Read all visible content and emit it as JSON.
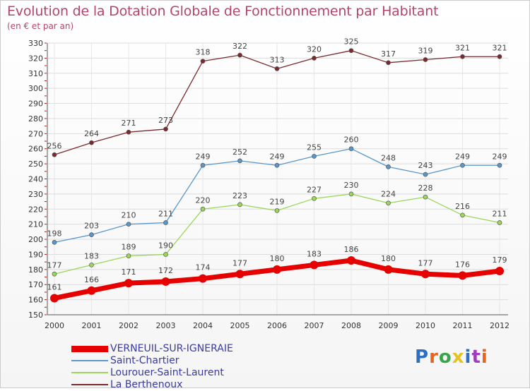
{
  "header": {
    "title": "Evolution de la Dotation Globale de Fonctionnement par Habitant",
    "subtitle": "(en € et par an)"
  },
  "brand": {
    "text": "Proxiti",
    "letter_colors": [
      "#2f6fc0",
      "#e8641e",
      "#3aa548",
      "#e5c21c",
      "#2f6fc0",
      "#9c3fb8",
      "#e8641e"
    ]
  },
  "chart_data": {
    "type": "line",
    "title": "Evolution de la Dotation Globale de Fonctionnement par Habitant",
    "subtitle": "(en € et par an)",
    "x": [
      "2000",
      "2001",
      "2002",
      "2003",
      "2004",
      "2005",
      "2006",
      "2007",
      "2008",
      "2009",
      "2010",
      "2011",
      "2012"
    ],
    "ylim": [
      150,
      330
    ],
    "yticks": [
      150,
      160,
      170,
      180,
      190,
      200,
      210,
      220,
      230,
      240,
      250,
      260,
      270,
      280,
      290,
      300,
      310,
      320,
      330
    ],
    "grid": true,
    "legend_position": "bottom-left",
    "series": [
      {
        "name": "VERNEUIL-SUR-IGNERAIE",
        "color": "#e60000",
        "values": [
          161,
          166,
          171,
          172,
          174,
          177,
          180,
          183,
          186,
          180,
          177,
          176,
          179
        ]
      },
      {
        "name": "Saint-Chartier",
        "color": "#5b96c8",
        "values": [
          198,
          203,
          210,
          211,
          249,
          252,
          249,
          255,
          260,
          248,
          243,
          249,
          249
        ]
      },
      {
        "name": "Lourouer-Saint-Laurent",
        "color": "#9bd65a",
        "values": [
          177,
          183,
          189,
          190,
          220,
          223,
          219,
          227,
          230,
          224,
          228,
          216,
          211
        ]
      },
      {
        "name": "La Berthenoux",
        "color": "#7a2a2e",
        "values": [
          256,
          264,
          271,
          273,
          318,
          322,
          313,
          320,
          325,
          317,
          319,
          321,
          321
        ]
      }
    ]
  }
}
